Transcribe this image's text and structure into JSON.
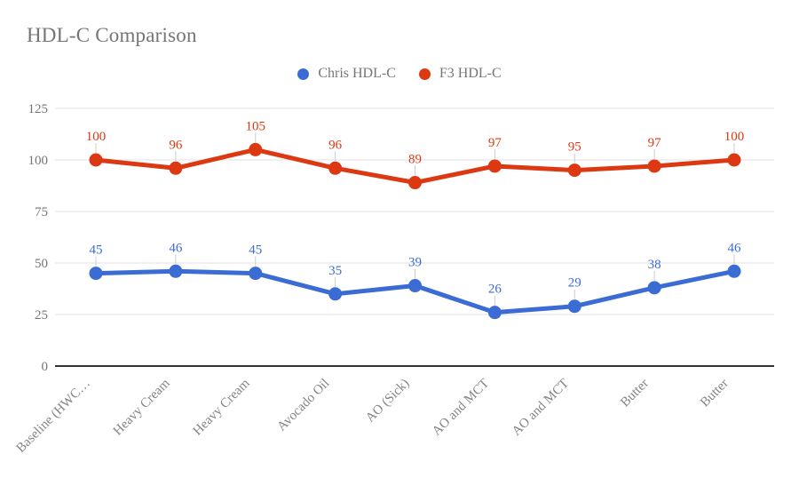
{
  "title": "HDL-C Comparison",
  "legend": [
    {
      "label": "Chris HDL-C",
      "color": "#3B6CD4"
    },
    {
      "label": "F3 HDL-C",
      "color": "#DC3912"
    }
  ],
  "chart_data": {
    "type": "line",
    "title": "HDL-C Comparison",
    "categories": [
      "Baseline (HWC…",
      "Heavy Cream",
      "Heavy Cream",
      "Avocado Oil",
      "AO (Sick)",
      "AO and MCT",
      "AO and MCT",
      "Butter",
      "Butter"
    ],
    "series": [
      {
        "name": "Chris HDL-C",
        "color": "#3B6CD4",
        "values": [
          45,
          46,
          45,
          35,
          39,
          26,
          29,
          38,
          46
        ]
      },
      {
        "name": "F3 HDL-C",
        "color": "#DC3912",
        "values": [
          100,
          96,
          105,
          96,
          89,
          97,
          95,
          97,
          100
        ]
      }
    ],
    "yticks": [
      0,
      25,
      50,
      75,
      100,
      125
    ],
    "ylim": [
      0,
      125
    ],
    "xlabel": "",
    "ylabel": "",
    "grid": true,
    "legend_position": "top",
    "data_labels": true,
    "colors": {
      "axis_label": "#848484",
      "tick_label": "#757575",
      "gridline": "#E0E0E0",
      "baseline": "#333333",
      "callout": "#CCCCCC",
      "title_text": "#757575",
      "background": "#FFFFFF"
    }
  }
}
